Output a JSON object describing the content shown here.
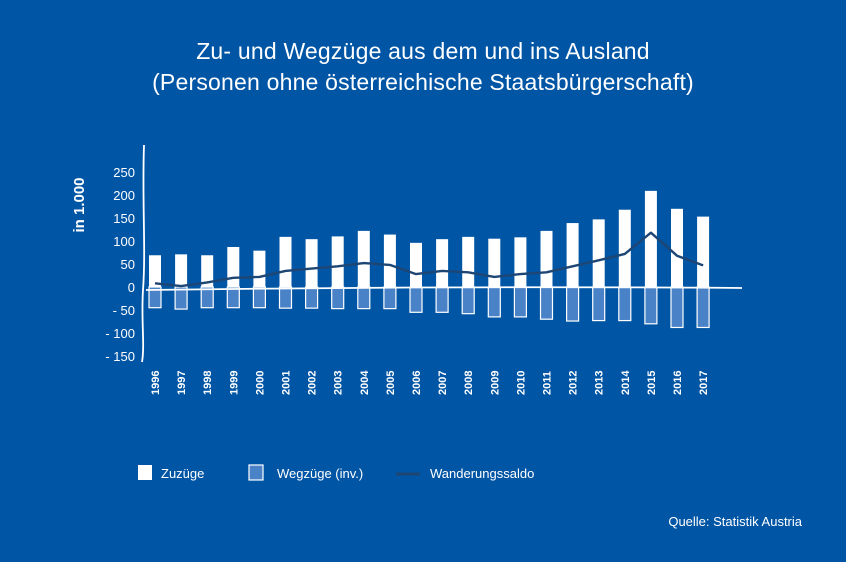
{
  "title_line1": "Zu- und Wegzüge aus dem und ins Ausland",
  "title_line2": "(Personen ohne österreichische Staatsbürgerschaft)",
  "source": "Quelle: Statistik Austria",
  "colors": {
    "background": "#0055a5",
    "zuzuege": "#ffffff",
    "wegzuege_fill": "#4a82c8",
    "wegzuege_stroke": "#ffffff",
    "saldo": "#1d4675",
    "axis": "#ffffff"
  },
  "chart_data": {
    "type": "bar",
    "ylabel": "in 1.000",
    "ylim": [
      -150,
      280
    ],
    "yticks": [
      250,
      200,
      150,
      100,
      50,
      0,
      -50,
      -100,
      -150
    ],
    "ytick_labels": [
      "250",
      "200",
      "150",
      "100",
      "50",
      "0",
      "- 50",
      "- 100",
      "- 150"
    ],
    "categories": [
      "1996",
      "1997",
      "1998",
      "1999",
      "2000",
      "2001",
      "2002",
      "2003",
      "2004",
      "2005",
      "2006",
      "2007",
      "2008",
      "2009",
      "2010",
      "2011",
      "2012",
      "2013",
      "2014",
      "2015",
      "2016",
      "2017"
    ],
    "series": [
      {
        "name": "Zuzüge",
        "kind": "bar",
        "values": [
          69,
          71,
          69,
          87,
          79,
          109,
          104,
          110,
          122,
          114,
          96,
          104,
          109,
          105,
          108,
          122,
          139,
          147,
          168,
          209,
          170,
          153
        ]
      },
      {
        "name": "Wegzüge (inv.)",
        "kind": "bar",
        "values": [
          -45,
          -48,
          -45,
          -45,
          -45,
          -46,
          -46,
          -47,
          -47,
          -47,
          -55,
          -55,
          -58,
          -65,
          -65,
          -70,
          -74,
          -73,
          -73,
          -80,
          -88,
          -88
        ]
      },
      {
        "name": "Wanderungssaldo",
        "kind": "line",
        "values": [
          8,
          2,
          10,
          20,
          22,
          35,
          40,
          45,
          52,
          48,
          28,
          35,
          32,
          22,
          28,
          32,
          45,
          58,
          72,
          118,
          68,
          47
        ]
      }
    ],
    "legend_position": "bottom",
    "grid": false
  }
}
